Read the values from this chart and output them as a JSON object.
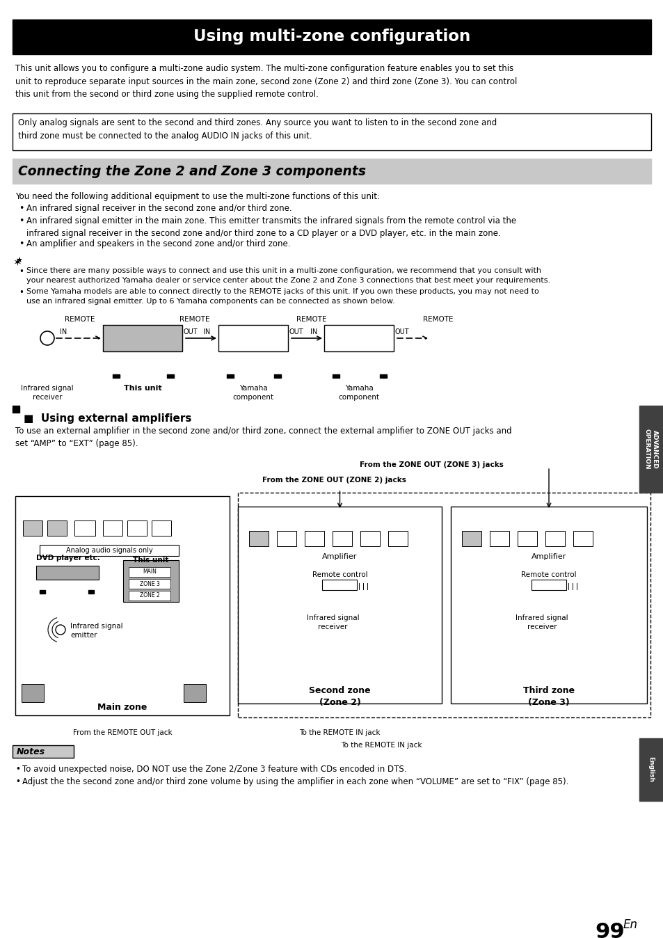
{
  "title": "Using multi-zone configuration",
  "section2_title": "Connecting the Zone 2 and Zone 3 components",
  "section3_title": "Using external amplifiers",
  "bg_color": "#ffffff",
  "title_bg": "#000000",
  "title_fg": "#ffffff",
  "section2_bg": "#c8c8c8",
  "body_text1": "This unit allows you to configure a multi-zone audio system. The multi-zone configuration feature enables you to set this\nunit to reproduce separate input sources in the main zone, second zone (Zone 2) and third zone (Zone 3). You can control\nthis unit from the second or third zone using the supplied remote control.",
  "notice_text": "Only analog signals are sent to the second and third zones. Any source you want to listen to in the second zone and\nthird zone must be connected to the analog AUDIO IN jacks of this unit.",
  "body_text2": "You need the following additional equipment to use the multi-zone functions of this unit:",
  "bullets": [
    "An infrared signal receiver in the second zone and/or third zone.",
    "An infrared signal emitter in the main zone. This emitter transmits the infrared signals from the remote control via the\ninfrared signal receiver in the second zone and/or third zone to a CD player or a DVD player, etc. in the main zone.",
    "An amplifier and speakers in the second zone and/or third zone."
  ],
  "tip_bullets": [
    "Since there are many possible ways to connect and use this unit in a multi-zone configuration, we recommend that you consult with\nyour nearest authorized Yamaha dealer or service center about the Zone 2 and Zone 3 connections that best meet your requirements.",
    "Some Yamaha models are able to connect directly to the REMOTE jacks of this unit. If you own these products, you may not need to\nuse an infrared signal emitter. Up to 6 Yamaha components can be connected as shown below."
  ],
  "ext_amp_text": "To use an external amplifier in the second zone and/or third zone, connect the external amplifier to ZONE OUT jacks and\nset “AMP” to “EXT” (page 85).",
  "notes_title": "Notes",
  "notes": [
    "To avoid unexpected noise, DO NOT use the Zone 2/Zone 3 feature with CDs encoded in DTS.",
    "Adjust the the second zone and/or third zone volume by using the amplifier in each zone when “VOLUME” are set to “FIX” (page 85)."
  ],
  "page_num": "99",
  "page_num_en": "En",
  "side_label": "ADVANCED\nOPERATION",
  "side_label2": "English",
  "from_zone3": "From the ZONE OUT (ZONE 3) jacks",
  "from_zone2": "From the ZONE OUT (ZONE 2) jacks",
  "from_remote_out": "From the REMOTE OUT jack",
  "to_remote_in1": "To the REMOTE IN jack",
  "to_remote_in2": "To the REMOTE IN jack"
}
